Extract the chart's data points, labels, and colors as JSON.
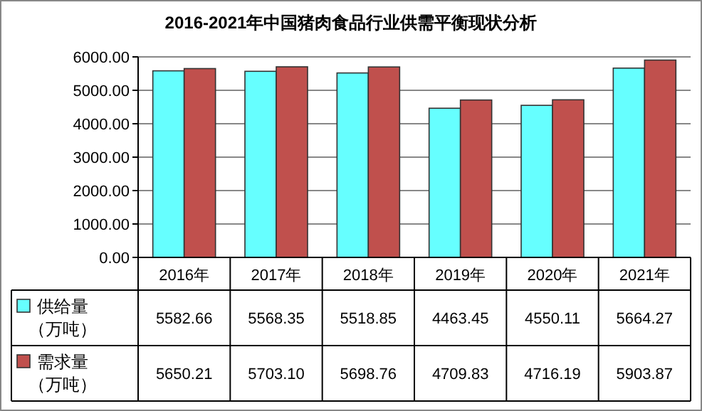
{
  "chart_data": {
    "type": "bar",
    "title": "2016-2021年中国猪肉食品行业供需平衡现状分析",
    "categories": [
      "2016年",
      "2017年",
      "2018年",
      "2019年",
      "2020年",
      "2021年"
    ],
    "series": [
      {
        "name": "供给量（万吨）",
        "color": "#66ffff",
        "values": [
          5582.66,
          5568.35,
          5518.85,
          4463.45,
          4550.11,
          5664.27
        ],
        "value_labels": [
          "5582.66",
          "5568.35",
          "5518.85",
          "4463.45",
          "4550.11",
          "5664.27"
        ]
      },
      {
        "name": "需求量（万吨）",
        "color": "#c0504d",
        "values": [
          5650.21,
          5703.1,
          5698.76,
          4709.83,
          4716.19,
          5903.87
        ],
        "value_labels": [
          "5650.21",
          "5703.10",
          "5698.76",
          "4709.83",
          "4716.19",
          "5903.87"
        ]
      }
    ],
    "ylim": [
      0,
      6000
    ],
    "yticks": [
      {
        "value": 0,
        "label": "0.00"
      },
      {
        "value": 1000,
        "label": "1000.00"
      },
      {
        "value": 2000,
        "label": "2000.00"
      },
      {
        "value": 3000,
        "label": "3000.00"
      },
      {
        "value": 4000,
        "label": "4000.00"
      },
      {
        "value": 5000,
        "label": "5000.00"
      },
      {
        "value": 6000,
        "label": "6000.00"
      }
    ],
    "grid": "y",
    "legend": "bottom"
  }
}
